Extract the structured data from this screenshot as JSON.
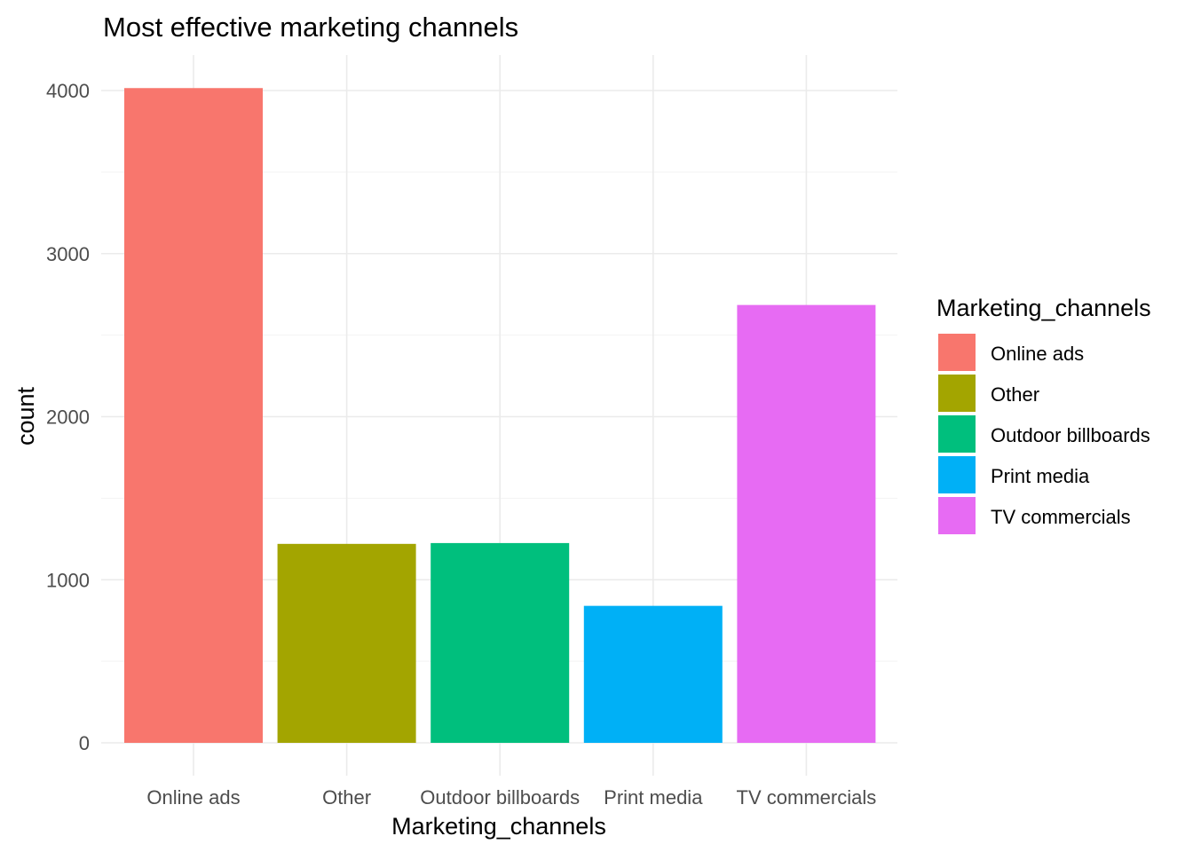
{
  "chart_data": {
    "type": "bar",
    "title": "Most effective marketing channels",
    "xlabel": "Marketing_channels",
    "ylabel": "count",
    "categories": [
      "Online ads",
      "Other",
      "Outdoor billboards",
      "Print media",
      "TV commercials"
    ],
    "values": [
      4015,
      1220,
      1225,
      840,
      2685
    ],
    "colors": [
      "#F8766D",
      "#A3A500",
      "#00BF7D",
      "#00B0F6",
      "#E76BF3"
    ],
    "ylim": [
      0,
      4200
    ],
    "yticks": [
      0,
      1000,
      2000,
      3000,
      4000
    ],
    "grid": true,
    "legend": {
      "title": "Marketing_channels",
      "placement": "right",
      "items": [
        "Online ads",
        "Other",
        "Outdoor billboards",
        "Print media",
        "TV commercials"
      ]
    }
  }
}
